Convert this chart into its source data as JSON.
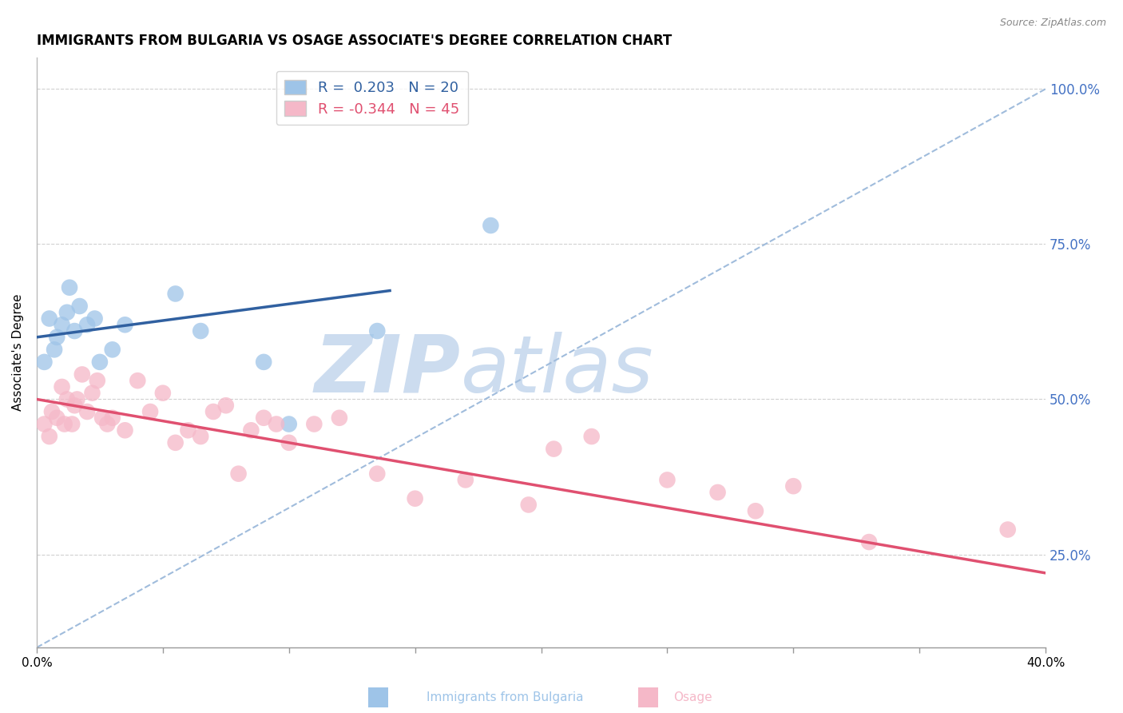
{
  "title": "IMMIGRANTS FROM BULGARIA VS OSAGE ASSOCIATE'S DEGREE CORRELATION CHART",
  "source": "Source: ZipAtlas.com",
  "ylabel": "Associate's Degree",
  "xlim": [
    0.0,
    40.0
  ],
  "ylim": [
    10.0,
    105.0
  ],
  "yticks": [
    25.0,
    50.0,
    75.0,
    100.0
  ],
  "xtick_positions": [
    0.0,
    5.0,
    10.0,
    15.0,
    20.0,
    25.0,
    30.0,
    35.0,
    40.0
  ],
  "xtick_labels": [
    "0.0%",
    "",
    "",
    "",
    "",
    "",
    "",
    "",
    "40.0%"
  ],
  "right_axis_color": "#4472c4",
  "legend_R1": "R =  0.203",
  "legend_N1": "N = 20",
  "legend_R2": "R = -0.344",
  "legend_N2": "N = 45",
  "blue_color": "#9ec4e8",
  "pink_color": "#f5b8c8",
  "blue_line_color": "#3060a0",
  "pink_line_color": "#e05070",
  "dashed_line_color": "#a0bcdc",
  "watermark_zip": "ZIP",
  "watermark_atlas": "atlas",
  "watermark_color": "#ccdcef",
  "title_fontsize": 12,
  "axis_label_fontsize": 11,
  "tick_fontsize": 10,
  "blue_dots_x": [
    0.3,
    0.5,
    0.7,
    0.8,
    1.0,
    1.2,
    1.3,
    1.5,
    1.7,
    2.0,
    2.3,
    2.5,
    3.0,
    3.5,
    5.5,
    6.5,
    9.0,
    10.0,
    13.5,
    18.0
  ],
  "blue_dots_y": [
    56,
    63,
    58,
    60,
    62,
    64,
    68,
    61,
    65,
    62,
    63,
    56,
    58,
    62,
    67,
    61,
    56,
    46,
    61,
    78
  ],
  "pink_dots_x": [
    0.3,
    0.5,
    0.6,
    0.8,
    1.0,
    1.1,
    1.2,
    1.4,
    1.5,
    1.6,
    1.8,
    2.0,
    2.2,
    2.4,
    2.6,
    2.8,
    3.0,
    3.5,
    4.0,
    4.5,
    5.0,
    5.5,
    6.0,
    6.5,
    7.0,
    7.5,
    8.0,
    8.5,
    9.0,
    9.5,
    10.0,
    11.0,
    12.0,
    13.5,
    15.0,
    17.0,
    19.5,
    20.5,
    22.0,
    25.0,
    27.0,
    28.5,
    30.0,
    33.0,
    38.5
  ],
  "pink_dots_y": [
    46,
    44,
    48,
    47,
    52,
    46,
    50,
    46,
    49,
    50,
    54,
    48,
    51,
    53,
    47,
    46,
    47,
    45,
    53,
    48,
    51,
    43,
    45,
    44,
    48,
    49,
    38,
    45,
    47,
    46,
    43,
    46,
    47,
    38,
    34,
    37,
    33,
    42,
    44,
    37,
    35,
    32,
    36,
    27,
    29
  ],
  "blue_line_x": [
    0.0,
    14.0
  ],
  "blue_line_y": [
    60.0,
    67.5
  ],
  "pink_line_x": [
    0.0,
    40.0
  ],
  "pink_line_y": [
    50.0,
    22.0
  ],
  "dashed_line_x": [
    0.0,
    40.0
  ],
  "dashed_line_y": [
    10.0,
    100.0
  ]
}
